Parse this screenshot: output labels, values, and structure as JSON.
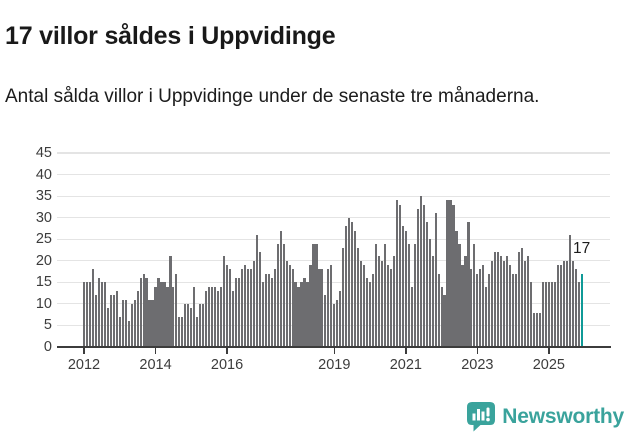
{
  "chart_data": {
    "type": "bar",
    "title": "17 villor såldes i Uppvidinge",
    "subtitle": "Antal sålda villor i Uppvidinge under de senaste tre månaderna.",
    "unit_frequency": "monthly-rolling-3-months",
    "x_start": "2012-01",
    "values": [
      15,
      15,
      15,
      18,
      12,
      16,
      15,
      15,
      9,
      12,
      12,
      13,
      7,
      11,
      11,
      6,
      10,
      11,
      13,
      16,
      17,
      16,
      11,
      11,
      14,
      16,
      15,
      15,
      14,
      21,
      14,
      17,
      7,
      7,
      10,
      10,
      9,
      14,
      7,
      10,
      10,
      13,
      14,
      14,
      14,
      13,
      14,
      21,
      19,
      18,
      13,
      16,
      16,
      18,
      19,
      18,
      18,
      20,
      26,
      22,
      15,
      17,
      17,
      16,
      18,
      24,
      27,
      24,
      20,
      19,
      18,
      15,
      14,
      15,
      16,
      15,
      19,
      24,
      24,
      18,
      18,
      12,
      18,
      19,
      10,
      11,
      13,
      23,
      28,
      30,
      29,
      27,
      23,
      20,
      19,
      16,
      15,
      17,
      24,
      21,
      20,
      24,
      19,
      18,
      21,
      34,
      33,
      28,
      27,
      24,
      14,
      24,
      32,
      35,
      33,
      29,
      25,
      21,
      31,
      17,
      14,
      12,
      34,
      34,
      33,
      27,
      24,
      19,
      21,
      29,
      18,
      24,
      17,
      18,
      19,
      14,
      17,
      20,
      22,
      22,
      21,
      20,
      21,
      19,
      17,
      17,
      22,
      23,
      20,
      21,
      15,
      8,
      8,
      8,
      15,
      15,
      15,
      15,
      15,
      19,
      19,
      20,
      20,
      26,
      20,
      18,
      15,
      17
    ],
    "highlight_index": 167,
    "highlight_value_label": "17",
    "yticks": [
      0,
      5,
      10,
      15,
      20,
      25,
      30,
      35,
      40,
      45
    ],
    "ylim": [
      0,
      45
    ],
    "xticks": [
      {
        "label": "2012",
        "month_index": 0
      },
      {
        "label": "2014",
        "month_index": 24
      },
      {
        "label": "2016",
        "month_index": 48
      },
      {
        "label": "2019",
        "month_index": 84
      },
      {
        "label": "2021",
        "month_index": 108
      },
      {
        "label": "2023",
        "month_index": 132
      },
      {
        "label": "2025",
        "month_index": 156
      }
    ],
    "grid": true,
    "legend": "none",
    "xlabel": "",
    "ylabel": "",
    "bar_color": "#6d6d70",
    "highlight_color": "#0f9a97",
    "axis_color": "#3c3c3c",
    "grid_color": "#e4e4e4"
  },
  "footer": {
    "brand": "Newsworthy",
    "logo_icon": "newsworthy-chart-bubble-icon",
    "brand_color": "#3aa39c"
  }
}
